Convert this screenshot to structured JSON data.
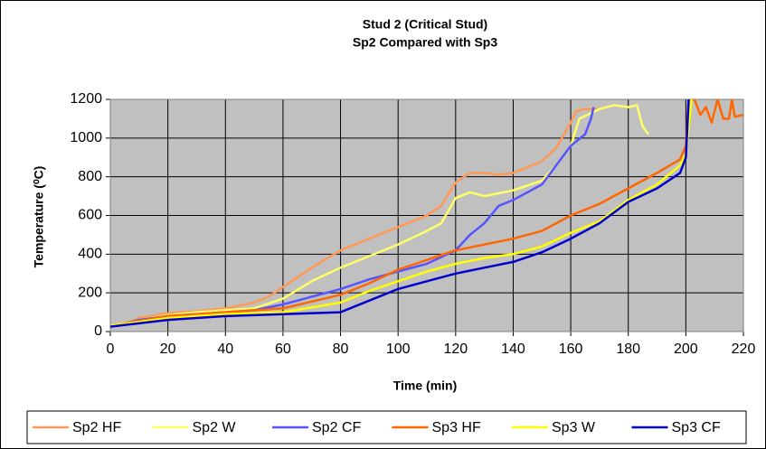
{
  "chart_data": {
    "type": "line",
    "title": "Stud 2 (Critical Stud)",
    "subtitle": "Sp2 Compared with Sp3",
    "xlabel": "Time (min)",
    "ylabel": "Temperature (⁰C)",
    "xlim": [
      0,
      220
    ],
    "xticks": [
      0,
      20,
      40,
      60,
      80,
      100,
      120,
      140,
      160,
      180,
      200,
      220
    ],
    "ylim": [
      0,
      1200
    ],
    "yticks": [
      0,
      200,
      400,
      600,
      800,
      1000,
      1200
    ],
    "grid": true,
    "legend": "bottom",
    "series": [
      {
        "name": "Sp2 HF",
        "color": "#ff9955",
        "x": [
          0,
          5,
          10,
          20,
          30,
          40,
          50,
          55,
          60,
          70,
          80,
          90,
          100,
          110,
          115,
          120,
          125,
          130,
          135,
          140,
          150,
          155,
          160,
          162,
          165,
          170
        ],
        "values": [
          30,
          40,
          70,
          95,
          105,
          120,
          150,
          180,
          230,
          330,
          420,
          480,
          540,
          600,
          650,
          770,
          820,
          820,
          810,
          820,
          880,
          950,
          1080,
          1140,
          1150,
          1150
        ]
      },
      {
        "name": "Sp2 W",
        "color": "#ffff66",
        "x": [
          0,
          10,
          20,
          30,
          40,
          50,
          60,
          70,
          80,
          90,
          100,
          110,
          115,
          120,
          125,
          130,
          140,
          150,
          155,
          160,
          163,
          170,
          175,
          180,
          183,
          185,
          187
        ],
        "values": [
          30,
          60,
          85,
          100,
          110,
          120,
          170,
          260,
          330,
          390,
          450,
          520,
          560,
          690,
          720,
          700,
          730,
          780,
          860,
          960,
          1100,
          1150,
          1170,
          1160,
          1170,
          1060,
          1020
        ]
      },
      {
        "name": "Sp2 CF",
        "color": "#5555ff",
        "x": [
          0,
          10,
          20,
          40,
          50,
          60,
          70,
          80,
          90,
          100,
          110,
          120,
          125,
          130,
          135,
          140,
          150,
          155,
          160,
          165,
          167,
          168
        ],
        "values": [
          25,
          60,
          80,
          100,
          110,
          140,
          180,
          220,
          270,
          310,
          350,
          420,
          500,
          560,
          650,
          680,
          760,
          860,
          960,
          1020,
          1100,
          1160
        ]
      },
      {
        "name": "Sp3 HF",
        "color": "#ff6600",
        "x": [
          0,
          20,
          40,
          60,
          80,
          90,
          100,
          110,
          120,
          130,
          140,
          150,
          160,
          170,
          180,
          190,
          198,
          200,
          201,
          203,
          205,
          207,
          209,
          211,
          213,
          215,
          216,
          217,
          220
        ],
        "values": [
          30,
          80,
          100,
          120,
          190,
          250,
          320,
          370,
          420,
          450,
          480,
          520,
          600,
          660,
          740,
          820,
          890,
          960,
          1200,
          1200,
          1120,
          1160,
          1080,
          1200,
          1100,
          1100,
          1200,
          1110,
          1120
        ]
      },
      {
        "name": "Sp3 W",
        "color": "#ffff00",
        "x": [
          0,
          20,
          40,
          60,
          80,
          90,
          100,
          110,
          120,
          130,
          140,
          150,
          160,
          170,
          180,
          190,
          198,
          200,
          202
        ],
        "values": [
          30,
          70,
          90,
          100,
          150,
          210,
          260,
          310,
          350,
          380,
          400,
          440,
          510,
          570,
          680,
          760,
          860,
          920,
          1200
        ]
      },
      {
        "name": "Sp3 CF",
        "color": "#0000cc",
        "x": [
          0,
          20,
          40,
          60,
          80,
          90,
          100,
          110,
          120,
          130,
          140,
          150,
          160,
          170,
          180,
          190,
          198,
          200,
          201
        ],
        "values": [
          25,
          60,
          80,
          90,
          100,
          160,
          220,
          260,
          300,
          330,
          360,
          410,
          480,
          560,
          670,
          740,
          820,
          900,
          1200
        ]
      }
    ]
  }
}
